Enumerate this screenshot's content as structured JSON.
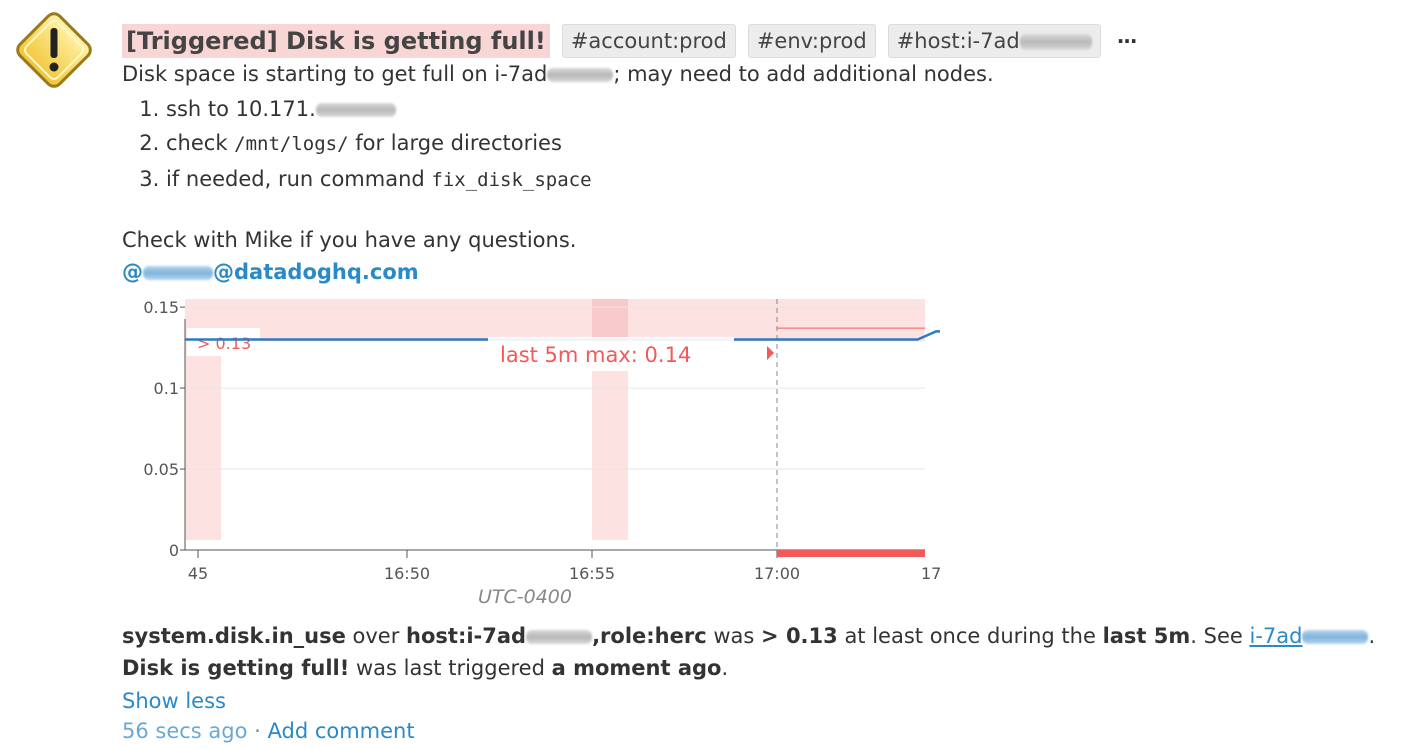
{
  "event": {
    "title": "[Triggered] Disk is getting full!",
    "tags": [
      "#account:prod",
      "#env:prod",
      "#host:i-7ad"
    ],
    "more_label": "...",
    "message_line": {
      "before": "Disk space is starting to get full on i-7ad",
      "after": "; may need to add additional nodes."
    },
    "steps": [
      {
        "text": "ssh to 10.171."
      },
      {
        "before": "check ",
        "code": "/mnt/logs/",
        "after": " for large directories"
      },
      {
        "before": "if needed, run command ",
        "code": "fix_disk_space"
      }
    ],
    "contact_line": "Check with Mike if you have any questions.",
    "email": {
      "prefix": "@",
      "domain": "@datadoghq.com"
    }
  },
  "chart_data": {
    "type": "line",
    "xlabel": "UTC-0400",
    "x_ticks": [
      "45",
      "16:50",
      "16:55",
      "17:00",
      "17:"
    ],
    "y_ticks": [
      "0",
      "0.05",
      "0.1",
      "0.15"
    ],
    "ylim": [
      0,
      0.155
    ],
    "threshold": 0.13,
    "threshold_label": "> 0.13",
    "annotation": "last 5m max: 0.14",
    "series": [
      {
        "color": "#2c7bc0",
        "points": [
          [
            "16:44",
            0.13
          ],
          [
            "16:47",
            0.13
          ],
          [
            "16:50",
            0.13
          ],
          [
            "16:53",
            0.13
          ],
          [
            "16:55",
            0.13
          ],
          [
            "16:58",
            0.13
          ],
          [
            "17:00",
            0.13
          ],
          [
            "17:02",
            0.13
          ],
          [
            "17:03.8",
            0.13
          ],
          [
            "17:04.3",
            0.135
          ],
          [
            "17:04.7",
            0.135
          ],
          [
            "17:05",
            0.13
          ]
        ]
      }
    ],
    "colors": {
      "alert_band": "#fde2e2",
      "alert_strong": "#f8caca",
      "threshold_line": "#f05a5a",
      "axis": "#555555",
      "grid": "#e6e6e6"
    }
  },
  "summary": {
    "metric": "system.disk.in_use",
    "over": " over ",
    "scope_a": "host:i-7ad",
    "scope_b": ",role:herc",
    "was": " was ",
    "condition": "> 0.13",
    "middle": " at least once during the ",
    "window": "last 5m",
    "see": ". See ",
    "link_text": "i-7ad",
    "end": "."
  },
  "last_triggered": {
    "name": "Disk is getting full!",
    "middle": " was last triggered ",
    "when": "a moment ago",
    "end": "."
  },
  "footer": {
    "show_less": "Show less",
    "timestamp": "56 secs ago",
    "separator": " · ",
    "add_comment": "Add comment"
  }
}
